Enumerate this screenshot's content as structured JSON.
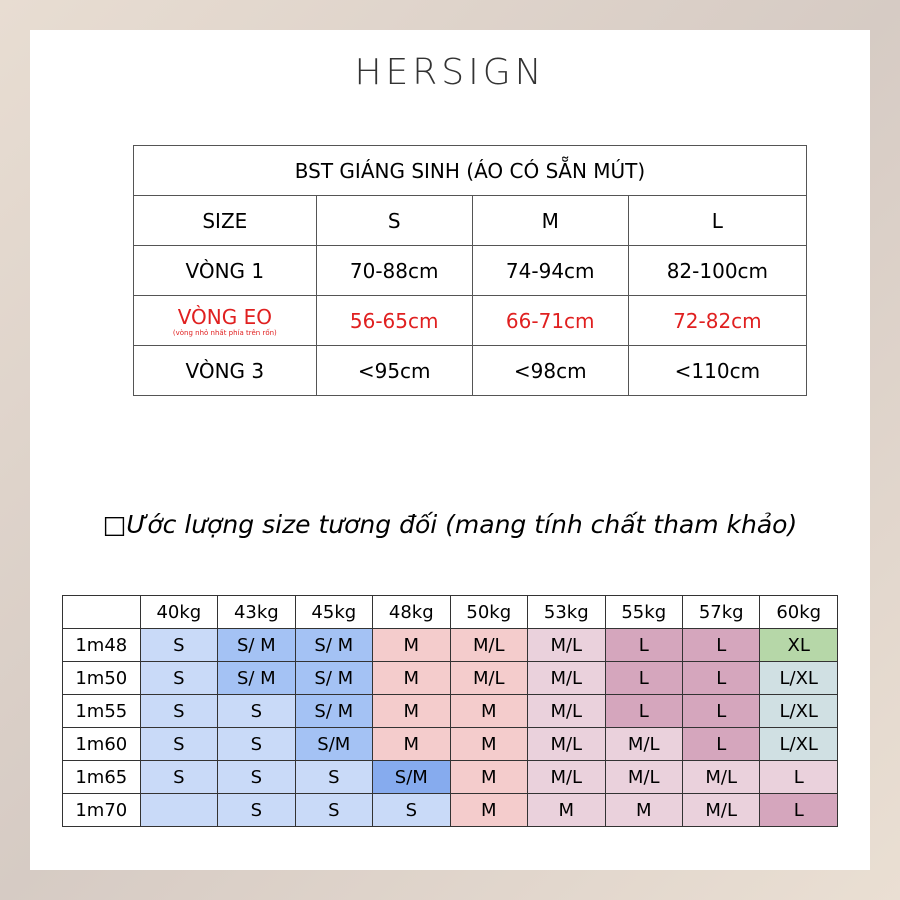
{
  "brand": "HERSIGN",
  "table": {
    "title": "BST GIÁNG SINH (ÁO CÓ SẴN MÚT)",
    "header": [
      "SIZE",
      "S",
      "M",
      "L"
    ],
    "rows": [
      [
        "VÒNG 1",
        "70-88cm",
        "74-94cm",
        "82-100cm"
      ],
      [
        "VÒNG EO",
        "56-65cm",
        "66-71cm",
        "72-82cm"
      ],
      [
        "VÒNG 3",
        "<95cm",
        "<98cm",
        "<110cm"
      ]
    ],
    "note": "(vòng nhỏ nhất phía trên rốn)"
  },
  "heading": "□Ước lượng size tương đối (mang tính chất tham khảo)",
  "estimate": {
    "columns": [
      "40kg",
      "43kg",
      "45kg",
      "48kg",
      "50kg",
      "53kg",
      "55kg",
      "57kg",
      "60kg"
    ],
    "rows": [
      {
        "height": "1m48",
        "cells": [
          "S",
          "S/ M",
          "S/ M",
          "M",
          "M/L",
          "M/L",
          "L",
          "L",
          "XL"
        ]
      },
      {
        "height": "1m50",
        "cells": [
          "S",
          "S/ M",
          "S/ M",
          "M",
          "M/L",
          "M/L",
          "L",
          "L",
          "L/XL"
        ]
      },
      {
        "height": "1m55",
        "cells": [
          "S",
          "S",
          "S/ M",
          "M",
          "M",
          "M/L",
          "L",
          "L",
          "L/XL"
        ]
      },
      {
        "height": "1m60",
        "cells": [
          "S",
          "S",
          "S/M",
          "M",
          "M",
          "M/L",
          "M/L",
          "L",
          "L/XL"
        ]
      },
      {
        "height": "1m65",
        "cells": [
          "S",
          "S",
          "S",
          "S/M",
          "M",
          "M/L",
          "M/L",
          "M/L",
          "L"
        ]
      },
      {
        "height": "1m70",
        "cells": [
          null,
          "S",
          "S",
          "S",
          "M",
          "M",
          "M",
          "M/L",
          "L"
        ]
      }
    ]
  }
}
